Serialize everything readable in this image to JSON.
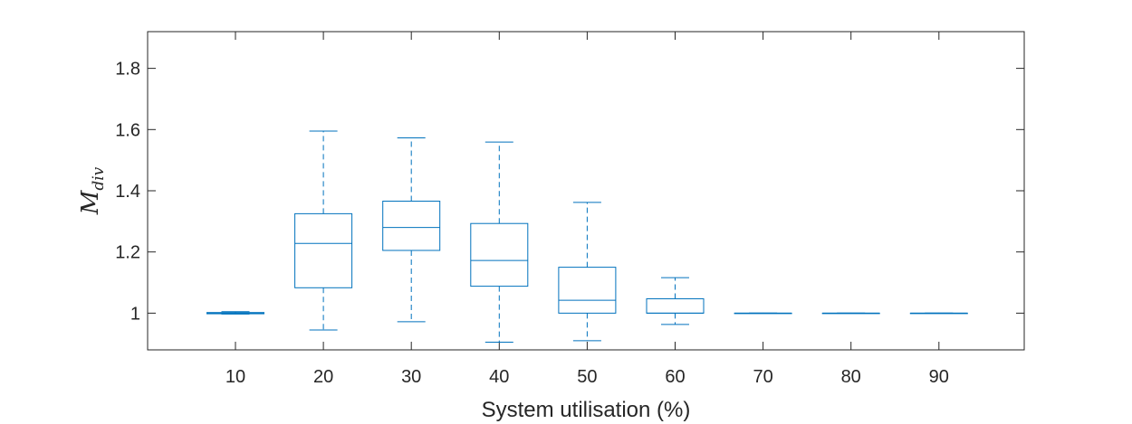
{
  "chart_data": {
    "type": "box",
    "xlabel": "System utilisation (%)",
    "ylabel": {
      "main": "M",
      "sub": "div"
    },
    "categories": [
      "10",
      "20",
      "30",
      "40",
      "50",
      "60",
      "70",
      "80",
      "90"
    ],
    "ylim": [
      0.88,
      1.92
    ],
    "yticks": [
      1,
      1.2,
      1.4,
      1.6,
      1.8
    ],
    "ytick_labels": [
      "1",
      "1.2",
      "1.4",
      "1.6",
      "1.8"
    ],
    "boxes": [
      {
        "category": "10",
        "whisker_low": 0.997,
        "q1": 0.998,
        "median": 1.0,
        "q3": 1.002,
        "whisker_high": 1.005
      },
      {
        "category": "20",
        "whisker_low": 0.945,
        "q1": 1.083,
        "median": 1.228,
        "q3": 1.325,
        "whisker_high": 1.595
      },
      {
        "category": "30",
        "whisker_low": 0.972,
        "q1": 1.205,
        "median": 1.28,
        "q3": 1.366,
        "whisker_high": 1.573
      },
      {
        "category": "40",
        "whisker_low": 0.905,
        "q1": 1.088,
        "median": 1.172,
        "q3": 1.293,
        "whisker_high": 1.559
      },
      {
        "category": "50",
        "whisker_low": 0.91,
        "q1": 1.0,
        "median": 1.042,
        "q3": 1.15,
        "whisker_high": 1.362
      },
      {
        "category": "60",
        "whisker_low": 0.963,
        "q1": 1.0,
        "median": 1.0,
        "q3": 1.047,
        "whisker_high": 1.116
      },
      {
        "category": "70",
        "whisker_low": 1.0,
        "q1": 1.0,
        "median": 1.0,
        "q3": 1.0,
        "whisker_high": 1.0
      },
      {
        "category": "80",
        "whisker_low": 1.0,
        "q1": 1.0,
        "median": 1.0,
        "q3": 1.0,
        "whisker_high": 1.0
      },
      {
        "category": "90",
        "whisker_low": 1.0,
        "q1": 1.0,
        "median": 1.0,
        "q3": 1.0,
        "whisker_high": 1.0
      }
    ],
    "grid": false,
    "legend": "none",
    "colors": {
      "box": "#0072bd",
      "axis": "#262626"
    }
  }
}
